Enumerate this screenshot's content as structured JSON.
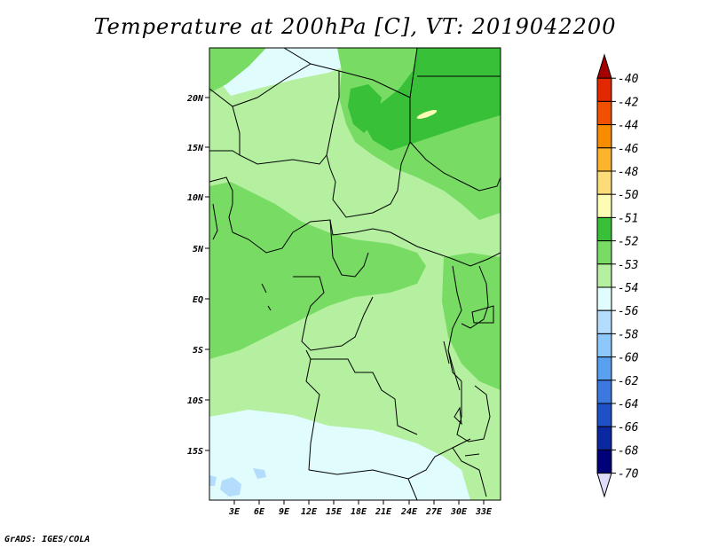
{
  "title": "Temperature at 200hPa [C], VT: 2019042200",
  "credit": "GrADS: IGES/COLA",
  "lat_labels": [
    "20N",
    "15N",
    "10N",
    "5N",
    "EQ",
    "5S",
    "10S",
    "15S"
  ],
  "lon_labels": [
    "3E",
    "6E",
    "9E",
    "12E",
    "15E",
    "18E",
    "21E",
    "24E",
    "27E",
    "30E",
    "33E"
  ],
  "colorbar": {
    "labels": [
      "-40",
      "-42",
      "-44",
      "-46",
      "-48",
      "-50",
      "-51",
      "-52",
      "-53",
      "-54",
      "-56",
      "-58",
      "-60",
      "-62",
      "-64",
      "-66",
      "-68",
      "-70"
    ],
    "colors": [
      "#a50000",
      "#e12800",
      "#f05000",
      "#f88c00",
      "#fcb42c",
      "#fcdc78",
      "#fcfcb4",
      "#38c038",
      "#78dc64",
      "#b4f0a0",
      "#e0fcfc",
      "#b4dcfc",
      "#8cc8fc",
      "#5aa0f0",
      "#3c78e0",
      "#1e50c8",
      "#0a28a0",
      "#000078",
      "#dcdcf8"
    ]
  },
  "colors": {
    "c52": "#38c038",
    "c53": "#78dc64",
    "c54": "#b4f0a0",
    "c56": "#e0fcfc",
    "c58": "#b4dcfc",
    "c51": "#fcfcb4",
    "outline": "#000000"
  }
}
